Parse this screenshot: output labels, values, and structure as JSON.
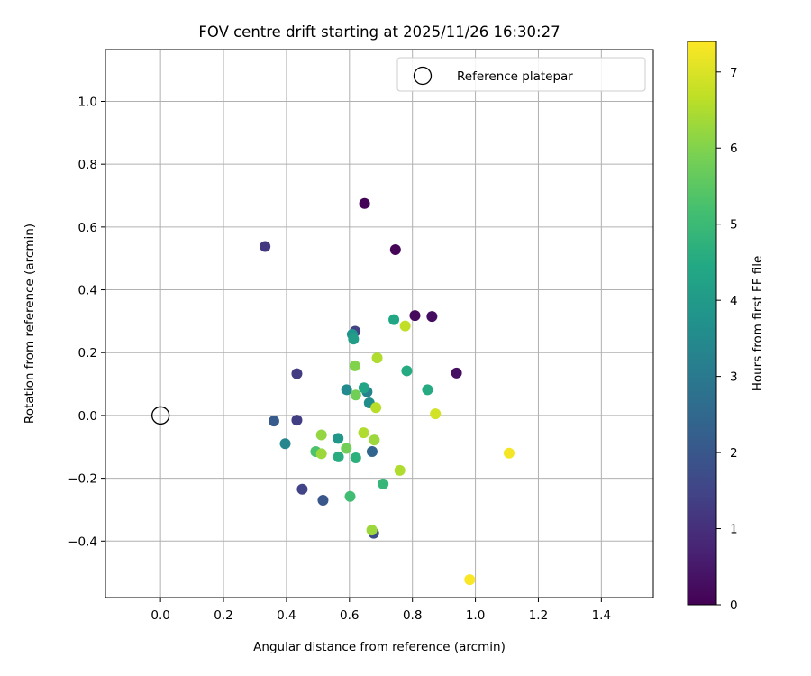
{
  "chart_data": {
    "type": "scatter",
    "title": "FOV centre drift starting at 2025/11/26 16:30:27",
    "xlabel": "Angular distance from reference (arcmin)",
    "ylabel": "Rotation from reference (arcmin)",
    "xlim": [
      -0.175,
      1.565
    ],
    "ylim": [
      -0.58,
      1.165
    ],
    "xticks": [
      0.0,
      0.2,
      0.4,
      0.6,
      0.8,
      1.0,
      1.2,
      1.4
    ],
    "xtick_labels": [
      "0.0",
      "0.2",
      "0.4",
      "0.6",
      "0.8",
      "1.0",
      "1.2",
      "1.4"
    ],
    "yticks": [
      -0.4,
      -0.2,
      0.0,
      0.2,
      0.4,
      0.6,
      0.8,
      1.0
    ],
    "ytick_labels": [
      "−0.4",
      "−0.2",
      "0.0",
      "0.2",
      "0.4",
      "0.6",
      "0.8",
      "1.0"
    ],
    "grid": true,
    "legend": {
      "position": "top-right",
      "entries": [
        "Reference platepar"
      ]
    },
    "reference_point": {
      "x": 0.0,
      "y": 0.0,
      "label": "Reference platepar"
    },
    "colorbar": {
      "label": "Hours from first FF file",
      "range": [
        0,
        7.4
      ],
      "ticks": [
        0,
        1,
        2,
        3,
        4,
        5,
        6,
        7
      ],
      "tick_labels": [
        "0",
        "1",
        "2",
        "3",
        "4",
        "5",
        "6",
        "7"
      ],
      "colormap": "viridis"
    },
    "points": [
      {
        "x": 0.648,
        "y": 0.675,
        "h": 0.05
      },
      {
        "x": 0.746,
        "y": 0.528,
        "h": 0.1
      },
      {
        "x": 0.808,
        "y": 0.318,
        "h": 0.2
      },
      {
        "x": 0.862,
        "y": 0.315,
        "h": 0.25
      },
      {
        "x": 0.94,
        "y": 0.135,
        "h": 0.3
      },
      {
        "x": 0.332,
        "y": 0.538,
        "h": 1.2
      },
      {
        "x": 0.618,
        "y": 0.268,
        "h": 1.4
      },
      {
        "x": 0.433,
        "y": 0.133,
        "h": 1.3
      },
      {
        "x": 0.433,
        "y": -0.015,
        "h": 1.35
      },
      {
        "x": 0.45,
        "y": -0.235,
        "h": 1.5
      },
      {
        "x": 0.516,
        "y": -0.27,
        "h": 2.0
      },
      {
        "x": 0.36,
        "y": -0.018,
        "h": 2.1
      },
      {
        "x": 0.677,
        "y": -0.375,
        "h": 1.7
      },
      {
        "x": 0.672,
        "y": -0.115,
        "h": 2.4
      },
      {
        "x": 0.396,
        "y": -0.09,
        "h": 3.4
      },
      {
        "x": 0.591,
        "y": 0.082,
        "h": 3.5
      },
      {
        "x": 0.656,
        "y": 0.075,
        "h": 3.3
      },
      {
        "x": 0.663,
        "y": 0.04,
        "h": 3.6
      },
      {
        "x": 0.609,
        "y": 0.258,
        "h": 3.8
      },
      {
        "x": 0.564,
        "y": -0.073,
        "h": 3.9
      },
      {
        "x": 0.613,
        "y": 0.243,
        "h": 4.1
      },
      {
        "x": 0.646,
        "y": 0.088,
        "h": 4.3
      },
      {
        "x": 0.741,
        "y": 0.305,
        "h": 4.4
      },
      {
        "x": 0.782,
        "y": 0.142,
        "h": 4.5
      },
      {
        "x": 0.848,
        "y": 0.082,
        "h": 4.5
      },
      {
        "x": 0.565,
        "y": -0.132,
        "h": 4.6
      },
      {
        "x": 0.62,
        "y": -0.135,
        "h": 4.7
      },
      {
        "x": 0.707,
        "y": -0.218,
        "h": 4.9
      },
      {
        "x": 0.602,
        "y": -0.258,
        "h": 5.1
      },
      {
        "x": 0.493,
        "y": -0.115,
        "h": 5.3
      },
      {
        "x": 0.59,
        "y": -0.105,
        "h": 5.8
      },
      {
        "x": 0.62,
        "y": 0.065,
        "h": 5.8
      },
      {
        "x": 0.617,
        "y": 0.158,
        "h": 6.0
      },
      {
        "x": 0.511,
        "y": -0.062,
        "h": 6.2
      },
      {
        "x": 0.511,
        "y": -0.122,
        "h": 6.3
      },
      {
        "x": 0.645,
        "y": -0.055,
        "h": 6.5
      },
      {
        "x": 0.679,
        "y": -0.078,
        "h": 6.3
      },
      {
        "x": 0.684,
        "y": 0.025,
        "h": 6.6
      },
      {
        "x": 0.688,
        "y": 0.183,
        "h": 6.5
      },
      {
        "x": 0.777,
        "y": 0.285,
        "h": 6.7
      },
      {
        "x": 0.76,
        "y": -0.175,
        "h": 6.5
      },
      {
        "x": 0.671,
        "y": -0.365,
        "h": 6.3
      },
      {
        "x": 0.873,
        "y": 0.005,
        "h": 6.9
      },
      {
        "x": 1.107,
        "y": -0.12,
        "h": 7.3
      },
      {
        "x": 0.982,
        "y": -0.523,
        "h": 7.35
      }
    ]
  }
}
